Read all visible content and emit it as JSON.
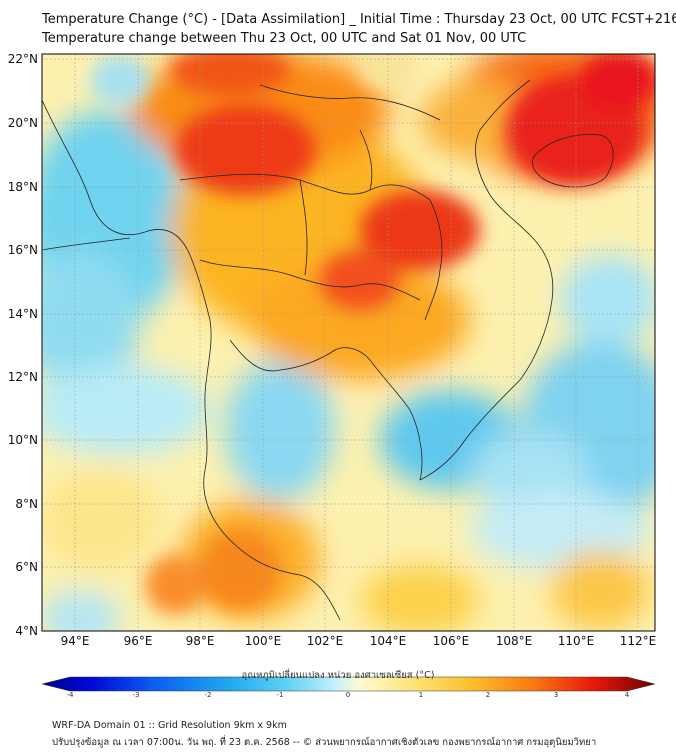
{
  "title_line1": "Temperature Change (°C) - [Data Assimilation] _ Initial Time : Thursday 23 Oct, 00 UTC FCST+216",
  "title_line2": "Temperature change between Thu 23 Oct, 00 UTC and Sat 01 Nov, 00 UTC",
  "lat_labels": [
    "22°N",
    "20°N",
    "18°N",
    "16°N",
    "14°N",
    "12°N",
    "10°N",
    "8°N",
    "6°N",
    "4°N"
  ],
  "lon_labels": [
    "94°E",
    "96°E",
    "98°E",
    "100°E",
    "102°E",
    "104°E",
    "106°E",
    "108°E",
    "110°E",
    "112°E"
  ],
  "colorbar": {
    "label": "อุณหภูมิเปลี่ยนแปลง หน่วย องศาเซลเซียส (°C)",
    "ticks": [
      "-4",
      "-3",
      "-2",
      "-1",
      "0",
      "1",
      "2",
      "3",
      "4"
    ],
    "range": [
      -4,
      4
    ]
  },
  "footer_line1": "WRF-DA Domain 01 :: Grid Resolution 9km x 9km",
  "footer_line2": "ปรับปรุงข้อมูล ณ เวลา 07:00น. วัน พฤ. ที่ 23 ต.ค. 2568 -- © ส่วนพยากรณ์อากาศเชิงตัวเลข กองพยากรณ์อากาศ กรมอุตุนิยมวิทยา"
}
